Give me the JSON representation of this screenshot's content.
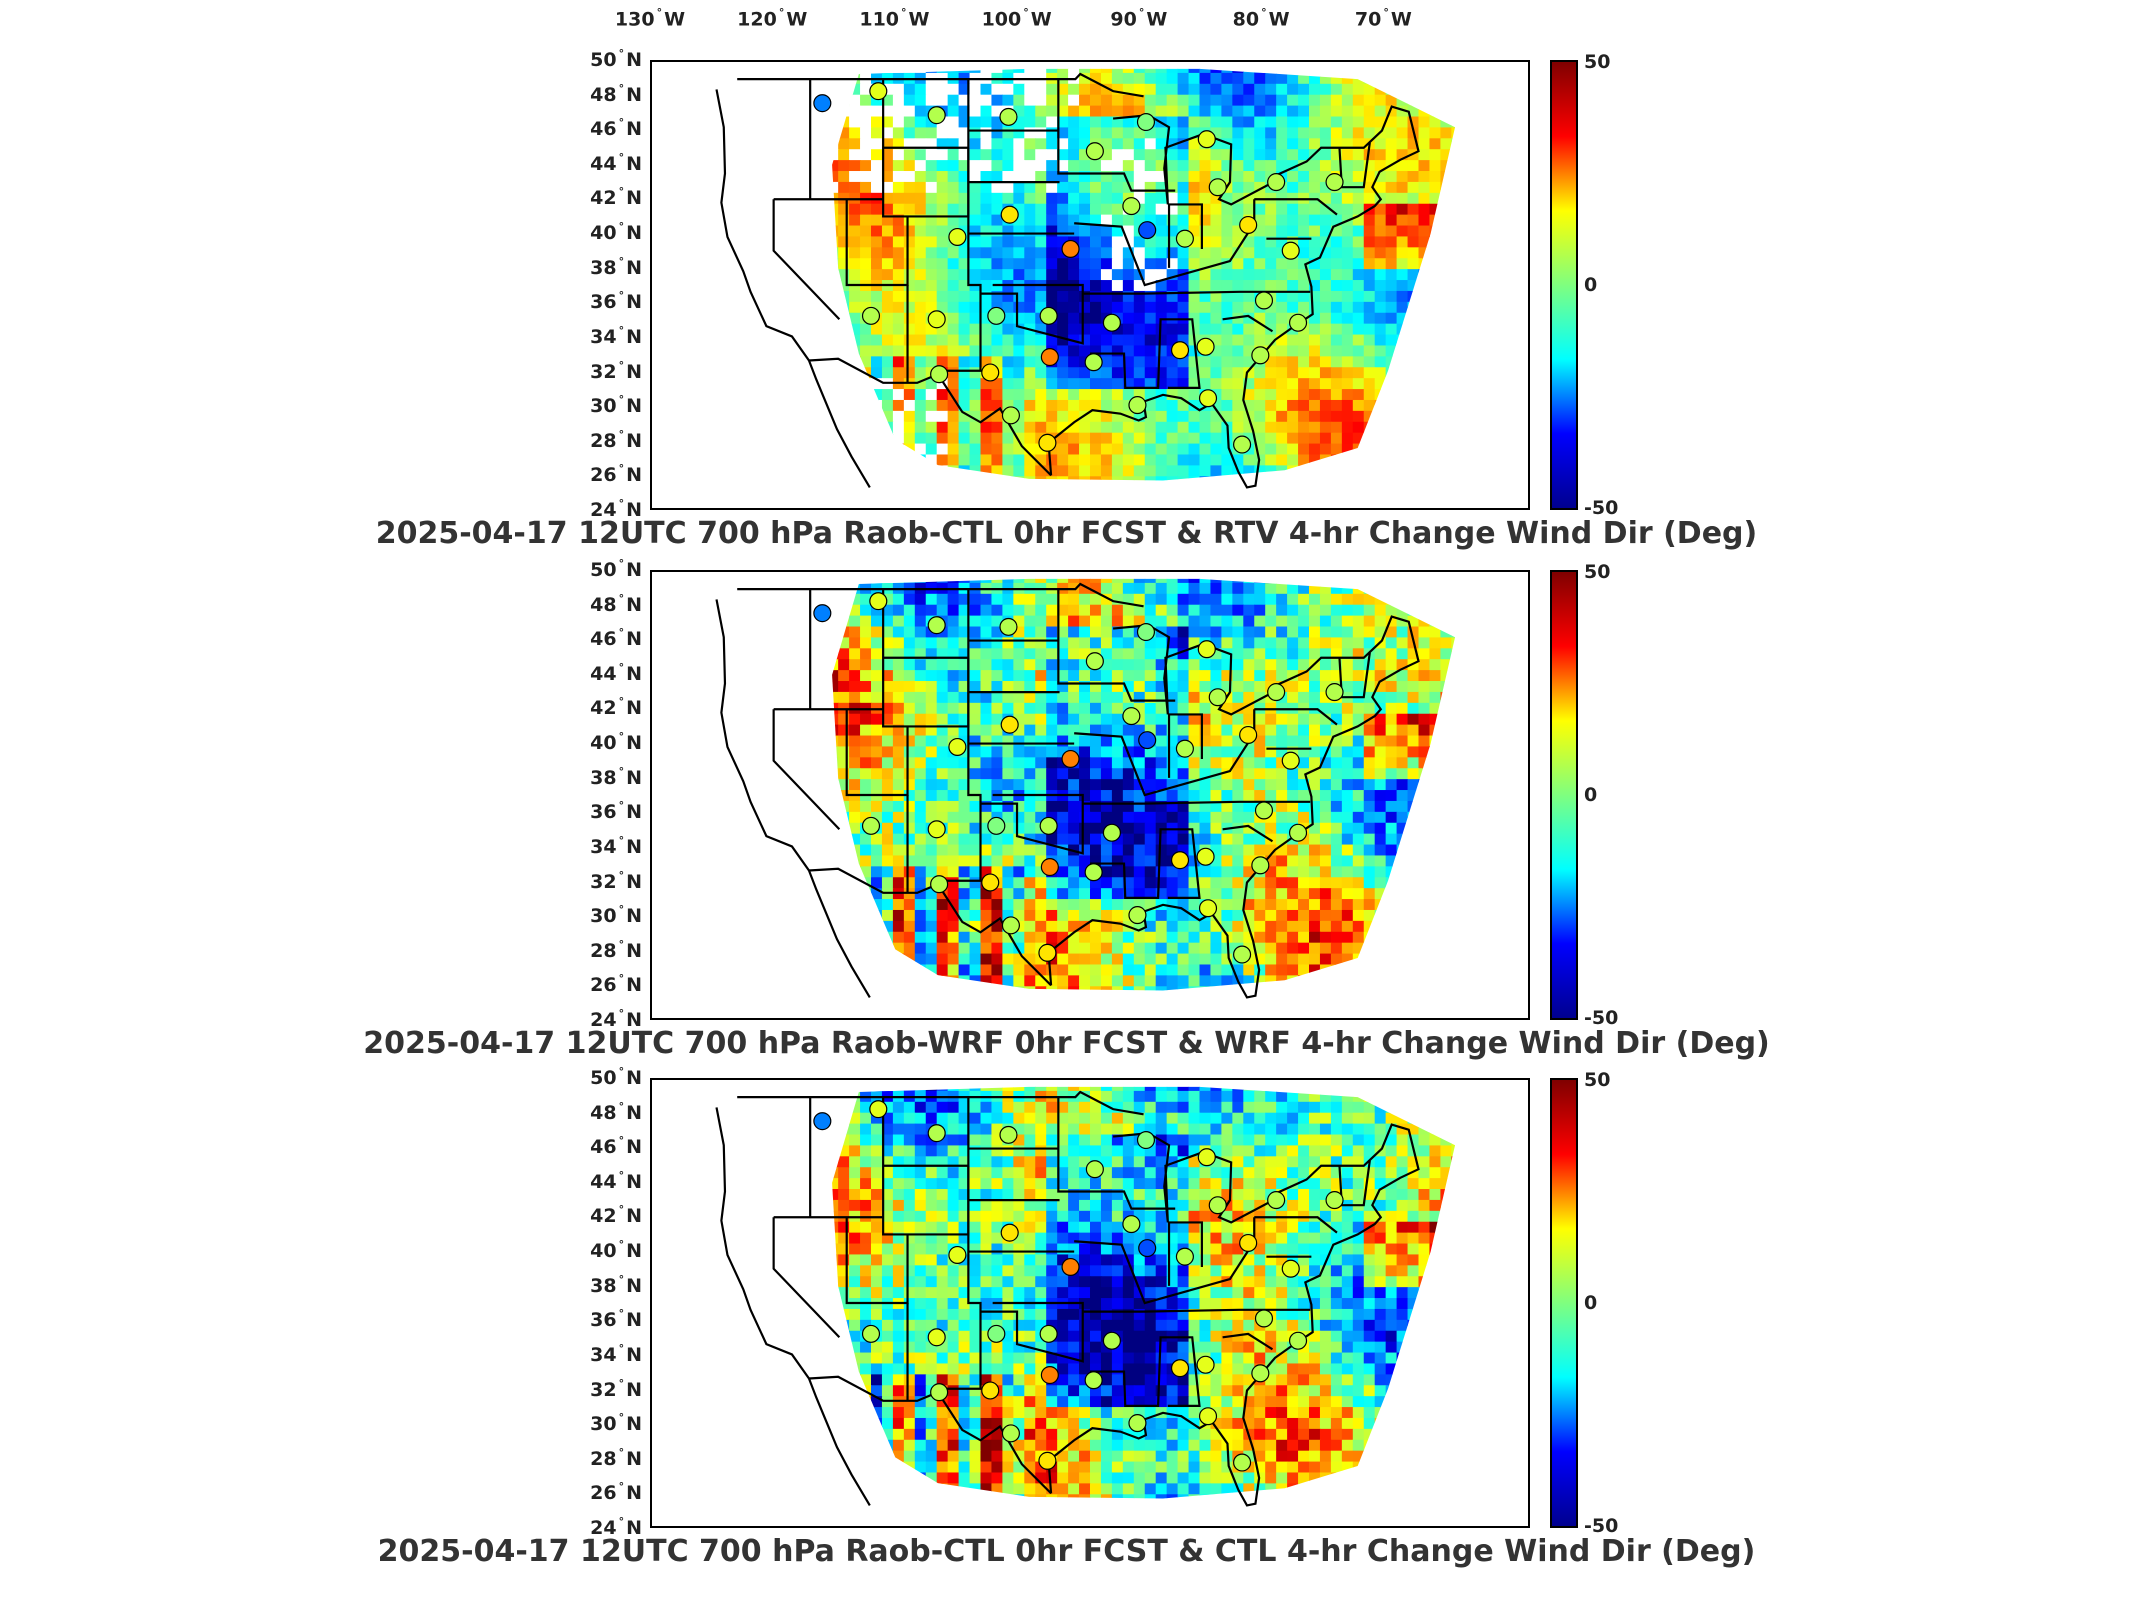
{
  "longitude_ticks": [
    {
      "deg": "130",
      "hemi": "W"
    },
    {
      "deg": "120",
      "hemi": "W"
    },
    {
      "deg": "110",
      "hemi": "W"
    },
    {
      "deg": "100",
      "hemi": "W"
    },
    {
      "deg": "90",
      "hemi": "W"
    },
    {
      "deg": "80",
      "hemi": "W"
    },
    {
      "deg": "70",
      "hemi": "W"
    }
  ],
  "latitude_ticks": [
    {
      "deg": "50",
      "hemi": "N"
    },
    {
      "deg": "48",
      "hemi": "N"
    },
    {
      "deg": "46",
      "hemi": "N"
    },
    {
      "deg": "44",
      "hemi": "N"
    },
    {
      "deg": "42",
      "hemi": "N"
    },
    {
      "deg": "40",
      "hemi": "N"
    },
    {
      "deg": "38",
      "hemi": "N"
    },
    {
      "deg": "36",
      "hemi": "N"
    },
    {
      "deg": "34",
      "hemi": "N"
    },
    {
      "deg": "32",
      "hemi": "N"
    },
    {
      "deg": "30",
      "hemi": "N"
    },
    {
      "deg": "28",
      "hemi": "N"
    },
    {
      "deg": "26",
      "hemi": "N"
    },
    {
      "deg": "24",
      "hemi": "N"
    }
  ],
  "colorbar": {
    "max_label": "50",
    "mid_label": "0",
    "min_label": "-50",
    "colormap": "jet",
    "stops": [
      "#00008f",
      "#0000ff",
      "#00ffff",
      "#7fff7f",
      "#ffff00",
      "#ff0000",
      "#800000"
    ]
  },
  "panels": [
    {
      "title": "2025-04-17 12UTC 700 hPa Raob-CTL 0hr FCST & RTV 4-hr Change Wind Dir (Deg)",
      "missing_data_gaps": true
    },
    {
      "title": "2025-04-17 12UTC 700 hPa Raob-WRF 0hr FCST & WRF 4-hr Change Wind Dir (Deg)",
      "missing_data_gaps": false
    },
    {
      "title": "2025-04-17 12UTC 700 hPa Raob-CTL 0hr FCST & CTL 4-hr Change Wind Dir (Deg)",
      "missing_data_gaps": false
    }
  ],
  "raob_stations": [
    {
      "lon": -116.0,
      "lat": 47.6,
      "value": -25
    },
    {
      "lon": -111.4,
      "lat": 48.3,
      "value": 10
    },
    {
      "lon": -106.6,
      "lat": 46.9,
      "value": 5
    },
    {
      "lon": -100.7,
      "lat": 46.8,
      "value": 5
    },
    {
      "lon": -93.6,
      "lat": 44.8,
      "value": 5
    },
    {
      "lon": -89.4,
      "lat": 46.5,
      "value": 0
    },
    {
      "lon": -84.4,
      "lat": 45.5,
      "value": 10
    },
    {
      "lon": -83.5,
      "lat": 42.7,
      "value": 5
    },
    {
      "lon": -78.7,
      "lat": 43.0,
      "value": 5
    },
    {
      "lon": -73.9,
      "lat": 43.0,
      "value": 5
    },
    {
      "lon": -90.6,
      "lat": 41.6,
      "value": 5
    },
    {
      "lon": -89.3,
      "lat": 40.2,
      "value": -30
    },
    {
      "lon": -86.2,
      "lat": 39.7,
      "value": 5
    },
    {
      "lon": -81.0,
      "lat": 40.5,
      "value": 15
    },
    {
      "lon": -77.5,
      "lat": 39.0,
      "value": 10
    },
    {
      "lon": -104.9,
      "lat": 39.8,
      "value": 10
    },
    {
      "lon": -100.6,
      "lat": 41.1,
      "value": 15
    },
    {
      "lon": -95.6,
      "lat": 39.1,
      "value": 25
    },
    {
      "lon": -112.0,
      "lat": 35.2,
      "value": 5
    },
    {
      "lon": -106.6,
      "lat": 35.0,
      "value": 10
    },
    {
      "lon": -101.7,
      "lat": 35.2,
      "value": 0
    },
    {
      "lon": -97.4,
      "lat": 35.2,
      "value": 5
    },
    {
      "lon": -92.2,
      "lat": 34.8,
      "value": 5
    },
    {
      "lon": -86.6,
      "lat": 33.2,
      "value": 15
    },
    {
      "lon": -84.5,
      "lat": 33.4,
      "value": 10
    },
    {
      "lon": -80.0,
      "lat": 32.9,
      "value": 5
    },
    {
      "lon": -79.7,
      "lat": 36.1,
      "value": 5
    },
    {
      "lon": -76.9,
      "lat": 34.8,
      "value": 5
    },
    {
      "lon": -106.4,
      "lat": 31.8,
      "value": 5
    },
    {
      "lon": -102.2,
      "lat": 31.9,
      "value": 15
    },
    {
      "lon": -97.3,
      "lat": 32.8,
      "value": 25
    },
    {
      "lon": -93.7,
      "lat": 32.5,
      "value": 5
    },
    {
      "lon": -90.1,
      "lat": 30.0,
      "value": 5
    },
    {
      "lon": -84.3,
      "lat": 30.4,
      "value": 10
    },
    {
      "lon": -97.5,
      "lat": 27.8,
      "value": 15
    },
    {
      "lon": -100.5,
      "lat": 29.4,
      "value": 5
    },
    {
      "lon": -81.5,
      "lat": 27.7,
      "value": 5
    }
  ]
}
